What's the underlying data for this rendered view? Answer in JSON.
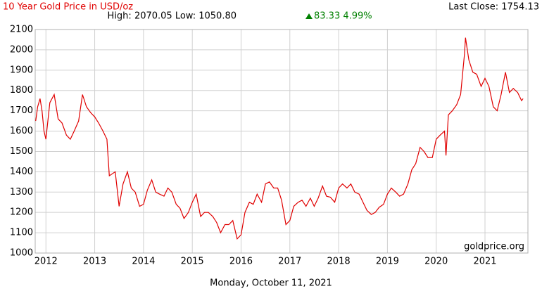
{
  "chart_data": {
    "type": "line",
    "title": "10 Year Gold Price in USD/oz",
    "last_close": "Last Close: 1754.13",
    "stats": "High: 2070.05 Low: 1050.80",
    "change": "83.33 4.99%",
    "watermark": "goldprice.org",
    "date": "Monday, October 11, 2021",
    "xlim": [
      2011.78,
      2021.88
    ],
    "xticks": [
      2012,
      2013,
      2014,
      2015,
      2016,
      2017,
      2018,
      2019,
      2020,
      2021
    ],
    "ylim": [
      1000,
      2100
    ],
    "yticks": [
      1000,
      1100,
      1200,
      1300,
      1400,
      1500,
      1600,
      1700,
      1800,
      1900,
      2000,
      2100
    ],
    "grid": true,
    "series": [
      {
        "color": "#e00000",
        "x": [
          2011.79,
          2011.83,
          2011.88,
          2011.92,
          2011.96,
          2012.0,
          2012.08,
          2012.17,
          2012.25,
          2012.33,
          2012.42,
          2012.5,
          2012.58,
          2012.67,
          2012.75,
          2012.83,
          2012.92,
          2013.0,
          2013.08,
          2013.17,
          2013.25,
          2013.3,
          2013.42,
          2013.5,
          2013.58,
          2013.67,
          2013.75,
          2013.83,
          2013.92,
          2014.0,
          2014.08,
          2014.17,
          2014.25,
          2014.33,
          2014.42,
          2014.5,
          2014.58,
          2014.67,
          2014.75,
          2014.83,
          2014.92,
          2015.0,
          2015.08,
          2015.17,
          2015.25,
          2015.33,
          2015.42,
          2015.5,
          2015.58,
          2015.67,
          2015.75,
          2015.83,
          2015.92,
          2016.0,
          2016.08,
          2016.17,
          2016.25,
          2016.33,
          2016.42,
          2016.5,
          2016.58,
          2016.67,
          2016.75,
          2016.83,
          2016.92,
          2017.0,
          2017.08,
          2017.17,
          2017.25,
          2017.33,
          2017.42,
          2017.5,
          2017.58,
          2017.67,
          2017.75,
          2017.83,
          2017.92,
          2018.0,
          2018.08,
          2018.17,
          2018.25,
          2018.33,
          2018.42,
          2018.5,
          2018.58,
          2018.67,
          2018.75,
          2018.83,
          2018.92,
          2019.0,
          2019.08,
          2019.17,
          2019.25,
          2019.33,
          2019.42,
          2019.5,
          2019.58,
          2019.67,
          2019.75,
          2019.83,
          2019.92,
          2020.0,
          2020.08,
          2020.17,
          2020.2,
          2020.25,
          2020.33,
          2020.42,
          2020.5,
          2020.58,
          2020.6,
          2020.67,
          2020.75,
          2020.83,
          2020.92,
          2021.0,
          2021.08,
          2021.17,
          2021.25,
          2021.33,
          2021.42,
          2021.5,
          2021.58,
          2021.67,
          2021.75,
          2021.78
        ],
        "values": [
          1650,
          1720,
          1760,
          1700,
          1600,
          1560,
          1740,
          1780,
          1660,
          1640,
          1580,
          1560,
          1600,
          1650,
          1780,
          1720,
          1690,
          1670,
          1640,
          1600,
          1560,
          1380,
          1400,
          1230,
          1340,
          1400,
          1320,
          1300,
          1230,
          1240,
          1310,
          1360,
          1300,
          1290,
          1280,
          1320,
          1300,
          1240,
          1220,
          1170,
          1200,
          1250,
          1290,
          1180,
          1200,
          1200,
          1180,
          1150,
          1100,
          1140,
          1140,
          1160,
          1070,
          1090,
          1200,
          1250,
          1240,
          1290,
          1250,
          1340,
          1350,
          1320,
          1320,
          1260,
          1140,
          1160,
          1230,
          1250,
          1260,
          1230,
          1270,
          1230,
          1270,
          1330,
          1280,
          1275,
          1250,
          1320,
          1340,
          1320,
          1340,
          1300,
          1290,
          1250,
          1210,
          1190,
          1200,
          1225,
          1240,
          1290,
          1320,
          1300,
          1280,
          1290,
          1340,
          1410,
          1440,
          1520,
          1500,
          1470,
          1470,
          1560,
          1580,
          1600,
          1480,
          1680,
          1700,
          1730,
          1780,
          1980,
          2060,
          1950,
          1890,
          1880,
          1820,
          1860,
          1820,
          1720,
          1700,
          1780,
          1890,
          1790,
          1810,
          1790,
          1750,
          1760
        ]
      }
    ]
  }
}
